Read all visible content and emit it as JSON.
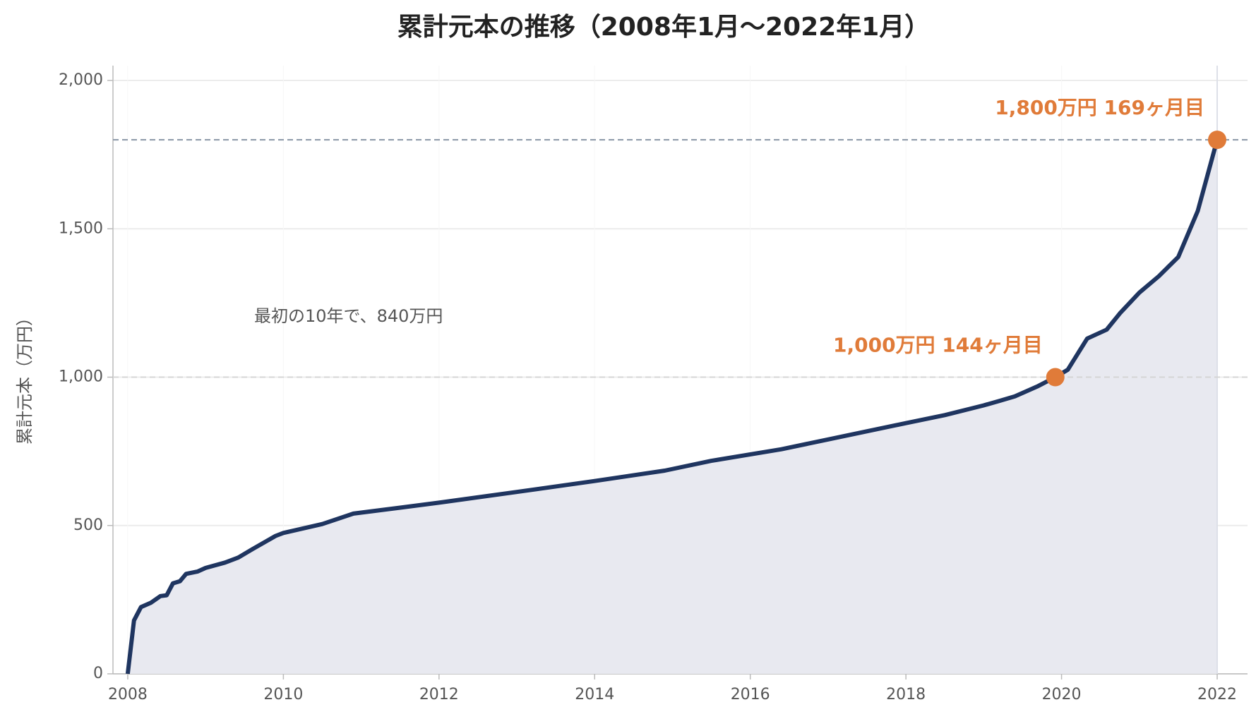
{
  "chart_data": {
    "type": "area-line",
    "title": "累計元本の推移（2008年1月〜2022年1月）",
    "y_label": "累計元本（万円）",
    "note": "最初の10年で、840万円",
    "x": [
      2008.0,
      2008.08,
      2008.17,
      2008.3,
      2008.42,
      2008.5,
      2008.58,
      2008.67,
      2008.75,
      2008.9,
      2009.0,
      2009.25,
      2009.42,
      2009.6,
      2009.9,
      2010.0,
      2010.5,
      2010.9,
      2011.5,
      2012.0,
      2013.0,
      2014.0,
      2014.9,
      2015.5,
      2016.4,
      2017.0,
      2018.0,
      2018.5,
      2019.0,
      2019.2,
      2019.4,
      2019.7,
      2019.92,
      2020.08,
      2020.33,
      2020.58,
      2020.75,
      2021.0,
      2021.25,
      2021.5,
      2021.75,
      2022.0
    ],
    "values": [
      0,
      180,
      225,
      240,
      262,
      265,
      305,
      312,
      337,
      345,
      357,
      375,
      392,
      420,
      465,
      475,
      505,
      540,
      560,
      577,
      613,
      650,
      685,
      718,
      757,
      790,
      845,
      872,
      905,
      920,
      935,
      970,
      1000,
      1025,
      1130,
      1160,
      1215,
      1285,
      1340,
      1405,
      1560,
      1800
    ],
    "color": "#1f3560",
    "fill_color": "#e8e9f0",
    "highlight_color": "#e07b39",
    "annotations": [
      {
        "x": 2019.92,
        "y": 1000,
        "label": "1,000万円  144ヶ月目"
      },
      {
        "x": 2022.0,
        "y": 1800,
        "label": "1,800万円  169ヶ月目"
      }
    ],
    "xlim": [
      2007.81,
      2022.39
    ],
    "ylim": [
      0,
      2050
    ],
    "xticks": [
      2008,
      2010,
      2012,
      2014,
      2016,
      2018,
      2020,
      2022
    ],
    "yticks": [
      0,
      500,
      {
        "value": 1000,
        "label": "1,000"
      },
      {
        "value": 1500,
        "label": "1,500"
      },
      {
        "value": 2000,
        "label": "2,000"
      }
    ],
    "grid": true
  }
}
